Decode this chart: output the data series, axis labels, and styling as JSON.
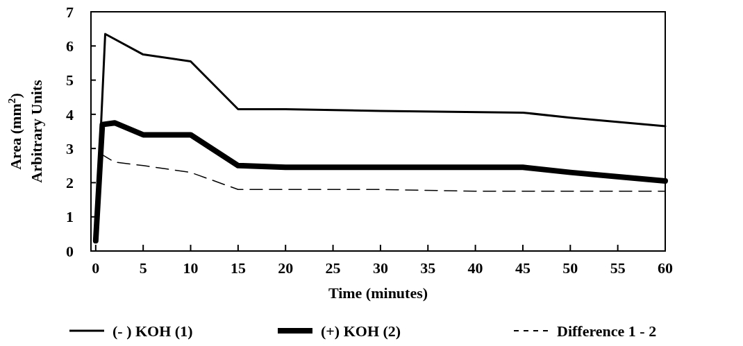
{
  "chart_data": {
    "type": "line",
    "xlabel": "Time (minutes)",
    "ylabel": "Area (mm$^{2}$)\nArbitrary Units",
    "xlim": [
      -0.5,
      60
    ],
    "xticks": [
      0,
      5,
      10,
      15,
      20,
      25,
      30,
      35,
      40,
      45,
      50,
      55,
      60
    ],
    "ylim": [
      0,
      7
    ],
    "yticks": [
      0,
      1,
      2,
      3,
      4,
      5,
      6,
      7
    ],
    "grid": false,
    "legend": "bottom",
    "series": [
      {
        "name": "(- ) KOH (1)",
        "color": "#000000",
        "x": [
          0,
          1,
          5,
          10,
          15,
          20,
          30,
          45,
          50,
          60
        ],
        "values": [
          0.3,
          6.35,
          5.75,
          5.55,
          4.15,
          4.15,
          4.1,
          4.05,
          3.9,
          3.65
        ]
      },
      {
        "name": "(+) KOH (2)",
        "color": "#000000",
        "x": [
          0,
          0.7,
          2,
          5,
          10,
          15,
          20,
          45,
          50,
          60
        ],
        "values": [
          0.3,
          3.7,
          3.75,
          3.4,
          3.4,
          2.5,
          2.45,
          2.45,
          2.3,
          2.05
        ]
      },
      {
        "name": "Difference 1 - 2",
        "color": "#000000",
        "line_style": "dashed",
        "x": [
          0.5,
          2,
          5,
          10,
          15,
          30,
          40,
          60
        ],
        "values": [
          2.85,
          2.6,
          2.5,
          2.3,
          1.8,
          1.8,
          1.75,
          1.75
        ]
      }
    ]
  }
}
